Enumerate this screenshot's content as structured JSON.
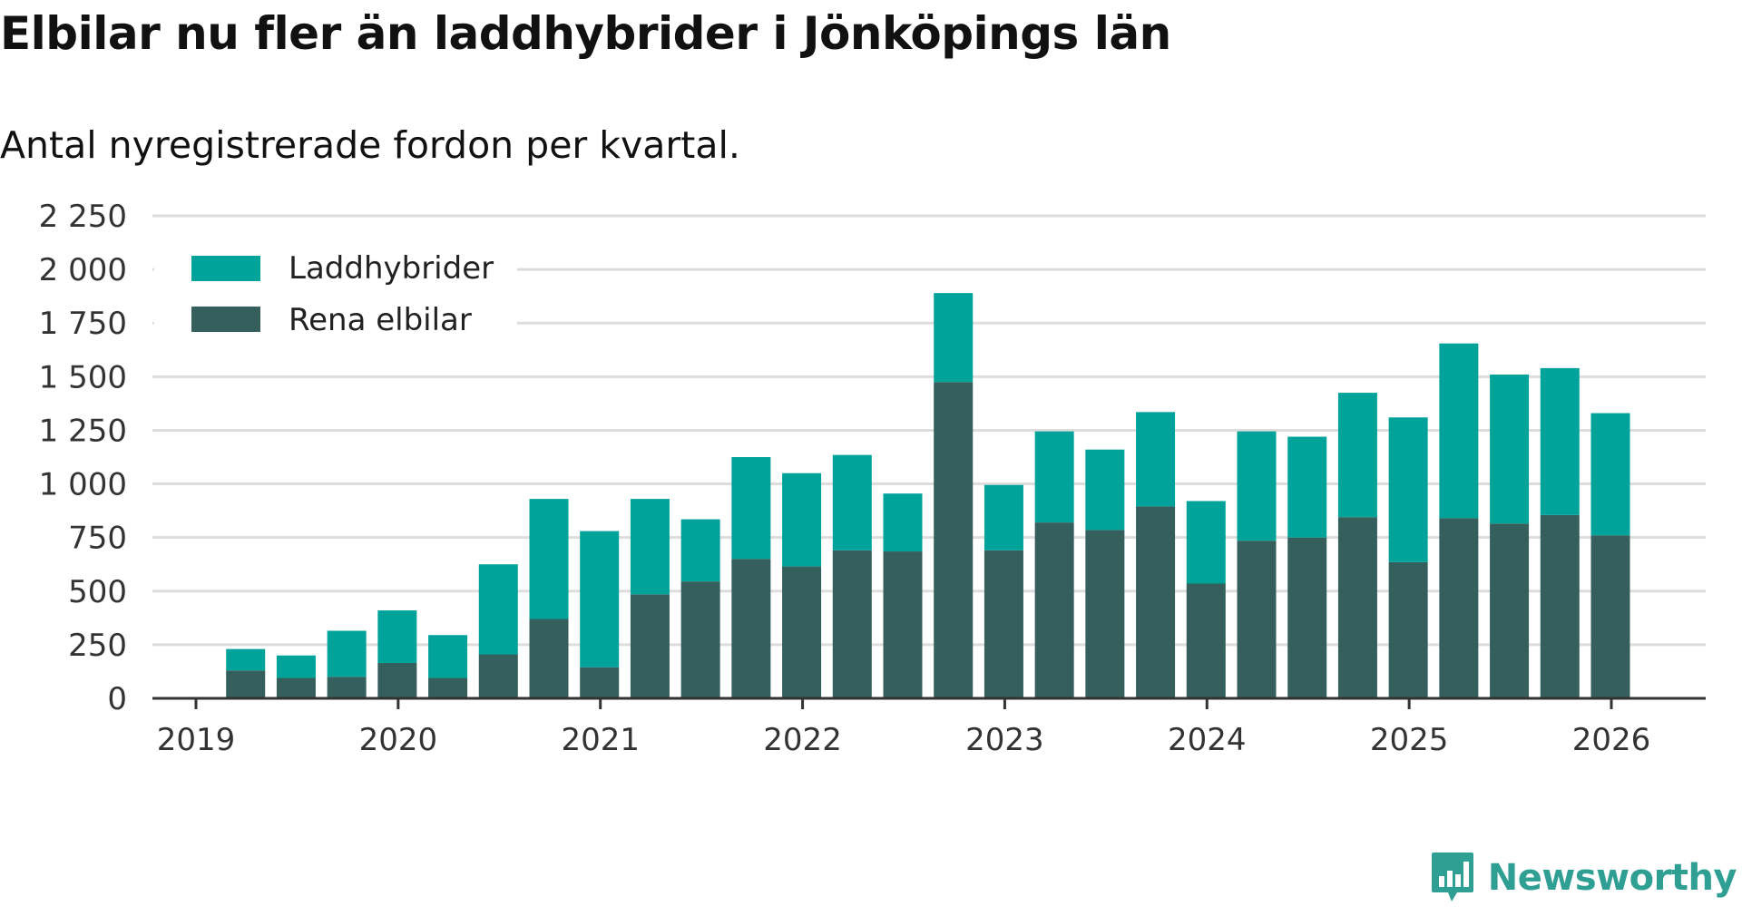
{
  "title": "Elbilar nu fler än laddhybrider i Jönköpings län",
  "subtitle": "Antal nyregistrerade fordon per kvartal.",
  "brand": {
    "name": "Newsworthy",
    "icon": "newsworthy-logo-icon"
  },
  "colors": {
    "phev": "#00a39a",
    "bev": "#345f5c",
    "grid": "#dddddd",
    "axis": "#333333"
  },
  "chart_data": {
    "type": "bar",
    "stacked": true,
    "title": "Elbilar nu fler än laddhybrider i Jönköpings län",
    "subtitle": "Antal nyregistrerade fordon per kvartal.",
    "xlabel": "",
    "ylabel": "",
    "ylim": [
      0,
      2250
    ],
    "yticks": [
      0,
      250,
      500,
      750,
      1000,
      1250,
      1500,
      1750,
      2000,
      2250
    ],
    "ytick_labels": [
      "0",
      "250",
      "500",
      "750",
      "1 000",
      "1 250",
      "1 500",
      "1 750",
      "2 000",
      "2 250"
    ],
    "x_axis": {
      "start": 2019.0,
      "end": 2026.0,
      "tick_labels": [
        "2019",
        "2020",
        "2021",
        "2022",
        "2023",
        "2024",
        "2025",
        "2026"
      ]
    },
    "grid": true,
    "legend_position": "top-left",
    "categories": [
      "2019 K2",
      "2019 K3",
      "2019 K4",
      "2020 K1",
      "2020 K2",
      "2020 K3",
      "2020 K4",
      "2021 K1",
      "2021 K2",
      "2021 K3",
      "2021 K4",
      "2022 K1",
      "2022 K2",
      "2022 K3",
      "2022 K4",
      "2023 K1",
      "2023 K2",
      "2023 K3",
      "2023 K4",
      "2024 K1",
      "2024 K2",
      "2024 K3",
      "2024 K4",
      "2025 K1",
      "2025 K2",
      "2025 K3",
      "2025 K4",
      "2026 K1"
    ],
    "x": [
      2019.25,
      2019.5,
      2019.75,
      2020.0,
      2020.25,
      2020.5,
      2020.75,
      2021.0,
      2021.25,
      2021.5,
      2021.75,
      2022.0,
      2022.25,
      2022.5,
      2022.75,
      2023.0,
      2023.25,
      2023.5,
      2023.75,
      2024.0,
      2024.25,
      2024.5,
      2024.75,
      2025.0,
      2025.25,
      2025.5,
      2025.75,
      2026.0
    ],
    "series": [
      {
        "name": "Rena elbilar",
        "color": "#345f5c",
        "values": [
          130,
          95,
          100,
          165,
          95,
          205,
          370,
          145,
          485,
          545,
          650,
          615,
          690,
          685,
          1475,
          690,
          820,
          785,
          895,
          535,
          735,
          750,
          845,
          635,
          840,
          815,
          855,
          760
        ]
      },
      {
        "name": "Laddhybrider",
        "color": "#00a39a",
        "values": [
          100,
          105,
          215,
          245,
          200,
          420,
          560,
          635,
          445,
          290,
          475,
          435,
          445,
          270,
          415,
          305,
          425,
          375,
          440,
          385,
          510,
          470,
          580,
          675,
          815,
          695,
          685,
          570
        ]
      }
    ],
    "legend": [
      "Laddhybrider",
      "Rena elbilar"
    ]
  }
}
